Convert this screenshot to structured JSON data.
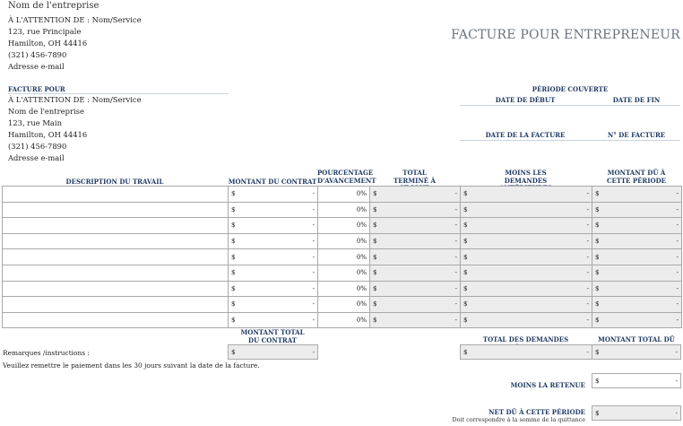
{
  "header": {
    "company_name": "Nom de l'entreprise",
    "sender_lines": [
      "À L'ATTENTION DE : Nom/Service",
      "123, rue Principale",
      "Hamilton, OH 44416",
      "(321) 456-7890",
      "Adresse e-mail"
    ],
    "title": "FACTURE POUR ENTREPRENEUR"
  },
  "billto": {
    "label": "FACTURE POUR",
    "lines": [
      "À L'ATTENTION DE : Nom/Service",
      "Nom de l'entreprise",
      "123, rue Main",
      "Hamilton, OH 44416",
      "(321) 456-7890",
      "Adresse e-mail"
    ]
  },
  "period": {
    "label": "PÉRIODE COUVERTE",
    "start_label": "DATE DE DÉBUT",
    "end_label": "DATE DE FIN",
    "invoice_date_label": "DATE DE LA FACTURE",
    "invoice_no_label": "N° DE FACTURE"
  },
  "table": {
    "headers": {
      "desc": "DESCRIPTION DU TRAVAIL",
      "contract": "MONTANT DU CONTRAT",
      "pct": "POURCENTAGE D'AVANCEMENT",
      "done": "TOTAL TERMINÉ À CE JOUR",
      "prev": "MOINS LES DEMANDES ANTÉRIEURES",
      "due": "MONTANT DÛ À CETTE PÉRIODE"
    },
    "rows": [
      {
        "desc": "",
        "contract": "-",
        "pct": "0%",
        "done": "-",
        "prev": "-",
        "due": "-"
      },
      {
        "desc": "",
        "contract": "-",
        "pct": "0%",
        "done": "-",
        "prev": "-",
        "due": "-"
      },
      {
        "desc": "",
        "contract": "-",
        "pct": "0%",
        "done": "-",
        "prev": "-",
        "due": "-"
      },
      {
        "desc": "",
        "contract": "-",
        "pct": "0%",
        "done": "-",
        "prev": "-",
        "due": "-"
      },
      {
        "desc": "",
        "contract": "-",
        "pct": "0%",
        "done": "-",
        "prev": "-",
        "due": "-"
      },
      {
        "desc": "",
        "contract": "-",
        "pct": "0%",
        "done": "-",
        "prev": "-",
        "due": "-"
      },
      {
        "desc": "",
        "contract": "-",
        "pct": "0%",
        "done": "-",
        "prev": "-",
        "due": "-"
      },
      {
        "desc": "",
        "contract": "-",
        "pct": "0%",
        "done": "-",
        "prev": "-",
        "due": "-"
      },
      {
        "desc": "",
        "contract": "-",
        "pct": "0%",
        "done": "-",
        "prev": "-",
        "due": "-"
      }
    ],
    "currency": "$"
  },
  "totals": {
    "contract_total_label": "MONTANT TOTAL DU CONTRAT",
    "contract_total_value": "-",
    "prev_total_label": "TOTAL DES DEMANDES ANTÉRIEURES",
    "prev_total_value": "-",
    "amount_total_label": "MONTANT TOTAL DÛ",
    "amount_total_value": "-",
    "retention_label": "MOINS LA RETENUE",
    "retention_value": "-",
    "net_label": "NET DÛ À CETTE PÉRIODE",
    "net_note": "Doit correspondre à la somme de la quittance",
    "net_value": "-"
  },
  "remarks": {
    "label": "Remarques /instructions :",
    "text": "Veuillez remettre le paiement dans les 30 jours suivant la date de la facture."
  }
}
